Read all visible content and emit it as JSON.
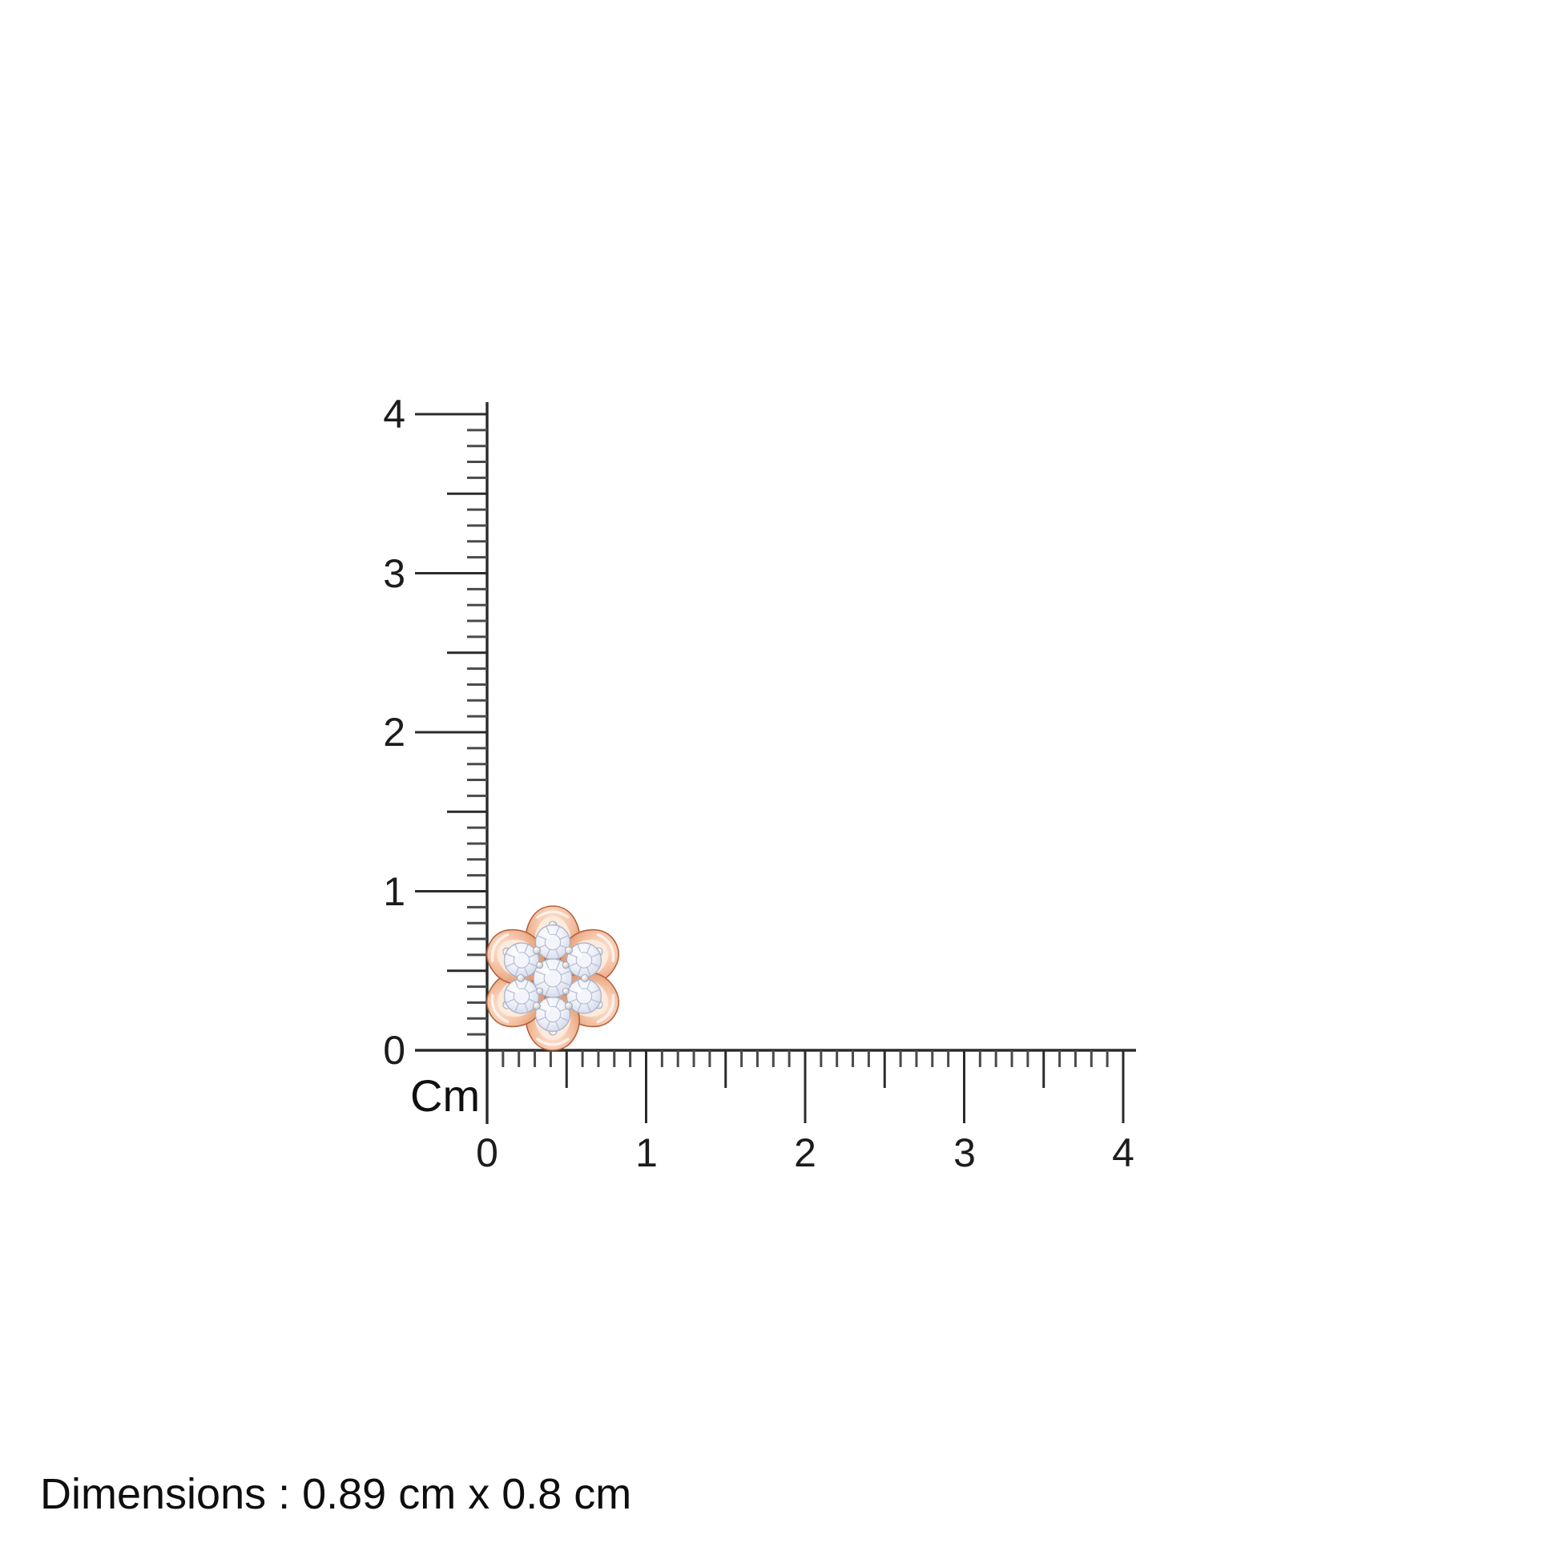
{
  "ruler": {
    "unit_label": "Cm",
    "range": [
      0,
      4
    ],
    "tick_step_cm": 0.1,
    "vertical": {
      "labels": [
        "4",
        "3",
        "2",
        "1",
        "0"
      ]
    },
    "horizontal": {
      "labels": [
        "0",
        "1",
        "2",
        "3",
        "4"
      ]
    }
  },
  "item": {
    "label": "flower-diamond-stud",
    "petal_count": 6,
    "diamond_count": 7,
    "colors": {
      "rose_gold_light": "#fce8da",
      "rose_gold_mid": "#f2bc9c",
      "rose_gold": "#e0976f",
      "rose_gold_deep": "#c06a45",
      "petal_inner": "#fcecdf",
      "diamond_white": "#ffffff",
      "diamond_base": "#eef1f8",
      "diamond_edge": "#bfc7dc",
      "diamond_facet": "#b6bfd6",
      "prong_silver": "#d9dbdf"
    }
  },
  "caption": {
    "text": "Dimensions : 0.89 cm x 0.8 cm",
    "height_cm": "0.89",
    "width_cm": "0.8"
  }
}
